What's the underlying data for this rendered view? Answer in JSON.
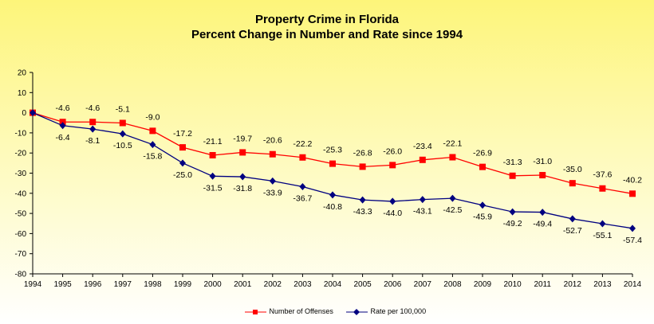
{
  "chart_data": {
    "type": "line",
    "title": "Property Crime in Florida",
    "subtitle": "Percent Change in Number and Rate since 1994",
    "xlabel": "",
    "ylabel": "",
    "categories": [
      "1994",
      "1995",
      "1996",
      "1997",
      "1998",
      "1999",
      "2000",
      "2001",
      "2002",
      "2003",
      "2004",
      "2005",
      "2006",
      "2007",
      "2008",
      "2009",
      "2010",
      "2011",
      "2012",
      "2013",
      "2014"
    ],
    "ylim": [
      -80,
      20
    ],
    "yticks": [
      20,
      10,
      0,
      -10,
      -20,
      -30,
      -40,
      -50,
      -60,
      -70,
      -80
    ],
    "grid": false,
    "legend_position": "bottom",
    "series": [
      {
        "name": "Number of Offenses",
        "color": "#ff0000",
        "marker": "square",
        "values": [
          0,
          -4.6,
          -4.6,
          -5.1,
          -9.0,
          -17.2,
          -21.1,
          -19.7,
          -20.6,
          -22.2,
          -25.3,
          -26.8,
          -26.0,
          -23.4,
          -22.1,
          -26.9,
          -31.3,
          -31.0,
          -35.0,
          -37.6,
          -40.2
        ],
        "data_labels": [
          "",
          "-4.6",
          "-4.6",
          "-5.1",
          "-9.0",
          "-17.2",
          "-21.1",
          "-19.7",
          "-20.6",
          "-22.2",
          "-25.3",
          "-26.8",
          "-26.0",
          "-23.4",
          "-22.1",
          "-26.9",
          "-31.3",
          "-31.0",
          "-35.0",
          "-37.6",
          "-40.2"
        ]
      },
      {
        "name": "Rate per 100,000",
        "color": "#000080",
        "marker": "diamond",
        "values": [
          0,
          -6.4,
          -8.1,
          -10.5,
          -15.8,
          -25.0,
          -31.5,
          -31.8,
          -33.9,
          -36.7,
          -40.8,
          -43.3,
          -44.0,
          -43.1,
          -42.5,
          -45.9,
          -49.2,
          -49.4,
          -52.7,
          -55.1,
          -57.4
        ],
        "data_labels": [
          "",
          "-6.4",
          "-8.1",
          "-10.5",
          "-15.8",
          "-25.0",
          "-31.5",
          "-31.8",
          "-33.9",
          "-36.7",
          "-40.8",
          "-43.3",
          "-44.0",
          "-43.1",
          "-42.5",
          "-45.9",
          "-49.2",
          "-49.4",
          "-52.7",
          "-55.1",
          "-57.4"
        ]
      }
    ]
  }
}
